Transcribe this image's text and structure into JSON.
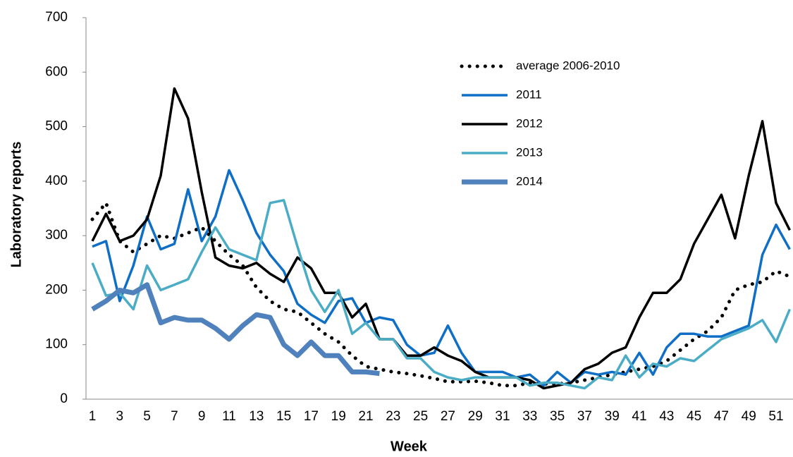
{
  "chart_data": {
    "type": "line",
    "y_label": "Laboratory reports",
    "x_label": "Week",
    "categories": [
      1,
      null,
      3,
      null,
      5,
      null,
      7,
      null,
      9,
      null,
      11,
      null,
      13,
      null,
      15,
      null,
      17,
      null,
      19,
      null,
      21,
      null,
      23,
      null,
      25,
      null,
      27,
      null,
      29,
      null,
      31,
      null,
      33,
      null,
      35,
      null,
      37,
      null,
      39,
      null,
      41,
      null,
      43,
      null,
      45,
      null,
      47,
      null,
      49,
      null,
      51,
      null
    ],
    "ylim": [
      0,
      700
    ],
    "yticks": [
      0,
      100,
      200,
      300,
      400,
      500,
      600,
      700
    ],
    "grid": false,
    "legend": "upper right",
    "series": [
      {
        "name": "average 2006-2010",
        "color": "#000000",
        "style": "dotted",
        "width": 5,
        "values": [
          330,
          360,
          290,
          270,
          285,
          300,
          295,
          305,
          315,
          290,
          265,
          245,
          205,
          180,
          165,
          160,
          140,
          120,
          105,
          80,
          60,
          55,
          50,
          47,
          43,
          38,
          32,
          32,
          33,
          30,
          25,
          25,
          30,
          28,
          28,
          30,
          35,
          40,
          45,
          50,
          55,
          60,
          70,
          90,
          110,
          125,
          150,
          200,
          210,
          215,
          235,
          225
        ]
      },
      {
        "name": "2011",
        "color": "#0f6fc6",
        "style": "solid",
        "width": 3.5,
        "values": [
          280,
          290,
          180,
          245,
          335,
          275,
          285,
          385,
          290,
          335,
          420,
          365,
          305,
          265,
          235,
          175,
          155,
          140,
          180,
          185,
          140,
          150,
          145,
          100,
          80,
          85,
          135,
          85,
          50,
          50,
          50,
          40,
          45,
          25,
          50,
          30,
          50,
          45,
          50,
          45,
          85,
          45,
          95,
          120,
          120,
          115,
          115,
          125,
          135,
          265,
          320,
          275
        ]
      },
      {
        "name": "2012",
        "color": "#000000",
        "style": "solid",
        "width": 3.5,
        "values": [
          290,
          340,
          290,
          300,
          330,
          410,
          570,
          515,
          380,
          260,
          245,
          240,
          250,
          230,
          215,
          260,
          240,
          195,
          195,
          150,
          175,
          110,
          110,
          80,
          80,
          95,
          80,
          70,
          50,
          40,
          40,
          40,
          35,
          20,
          25,
          30,
          55,
          65,
          85,
          95,
          150,
          195,
          195,
          220,
          285,
          330,
          375,
          295,
          410,
          510,
          360,
          310
        ]
      },
      {
        "name": "2013",
        "color": "#4bacc6",
        "style": "solid",
        "width": 3.5,
        "values": [
          250,
          190,
          195,
          165,
          245,
          200,
          210,
          220,
          270,
          315,
          275,
          265,
          255,
          360,
          365,
          280,
          200,
          160,
          200,
          120,
          140,
          110,
          110,
          75,
          75,
          50,
          40,
          35,
          40,
          40,
          40,
          40,
          25,
          30,
          30,
          25,
          20,
          40,
          35,
          80,
          40,
          65,
          60,
          75,
          70,
          90,
          110,
          120,
          130,
          145,
          105,
          165
        ]
      },
      {
        "name": "2014",
        "color": "#4f81bd",
        "style": "solid",
        "width": 7,
        "values": [
          165,
          180,
          200,
          195,
          210,
          140,
          150,
          145,
          145,
          130,
          110,
          135,
          155,
          150,
          100,
          80,
          105,
          80,
          80,
          50,
          50,
          47,
          null,
          null,
          null,
          null,
          null,
          null,
          null,
          null,
          null,
          null,
          null,
          null,
          null,
          null,
          null,
          null,
          null,
          null,
          null,
          null,
          null,
          null,
          null,
          null,
          null,
          null,
          null,
          null,
          null,
          null
        ]
      }
    ]
  }
}
